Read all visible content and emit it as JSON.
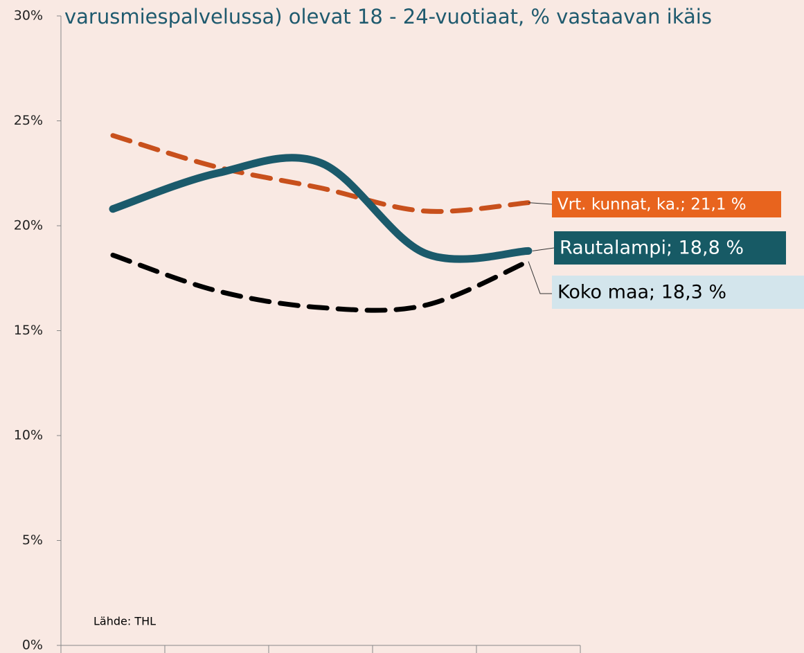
{
  "chart_data": {
    "type": "line",
    "title": "varusmiespalvelussa) olevat 18 - 24-vuotiaat, % vastaavan ikäis",
    "categories": [
      null,
      null,
      null,
      null,
      null
    ],
    "series": [
      {
        "name": "Vrt. kunnat, ka.; 21,1 %",
        "color": "#c8501c",
        "box_color": "#e8641e",
        "text_color": "#ffffff",
        "dashed": true,
        "values": [
          24.3,
          22.8,
          21.8,
          20.7,
          21.1
        ]
      },
      {
        "name": "Rautalampi; 18,8 %",
        "color": "#1b5a6b",
        "box_color": "#175a65",
        "text_color": "#ffffff",
        "dashed": false,
        "values": [
          20.8,
          22.5,
          23.0,
          18.7,
          18.8
        ]
      },
      {
        "name": "Koko maa; 18,3 %",
        "color": "#000000",
        "box_color": "#d3e5ec",
        "text_color": "#000000",
        "dashed": true,
        "values": [
          18.6,
          16.9,
          16.1,
          16.2,
          18.3
        ]
      }
    ],
    "ylim": [
      0,
      30
    ],
    "yticks": [
      {
        "value": 0,
        "label": "0%"
      },
      {
        "value": 5,
        "label": "5%"
      },
      {
        "value": 10,
        "label": "10%"
      },
      {
        "value": 15,
        "label": "15%"
      },
      {
        "value": 20,
        "label": "20%"
      },
      {
        "value": 25,
        "label": "25%"
      },
      {
        "value": 30,
        "label": "30%"
      }
    ],
    "source": "Lähde: THL"
  }
}
